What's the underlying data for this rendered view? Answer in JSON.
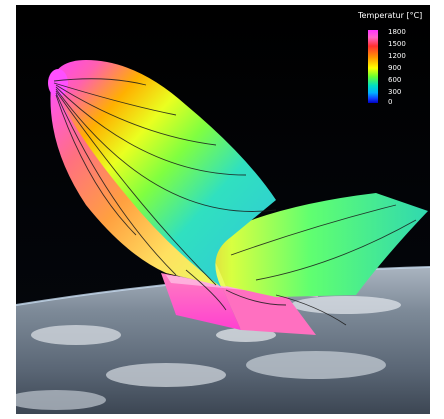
{
  "legend": {
    "title": "Temperatur [°C]",
    "ticks": [
      "1800",
      "1500",
      "1200",
      "900",
      "600",
      "300",
      "0"
    ],
    "colors": [
      "#ff33ff",
      "#ff3030",
      "#ff9a00",
      "#ffff00",
      "#66ff33",
      "#00b0ff",
      "#0000c0"
    ]
  },
  "scene": {
    "background": "#000000",
    "earth_colors": [
      "#6c7c8c",
      "#a9b3bd",
      "#3d4a57"
    ]
  }
}
